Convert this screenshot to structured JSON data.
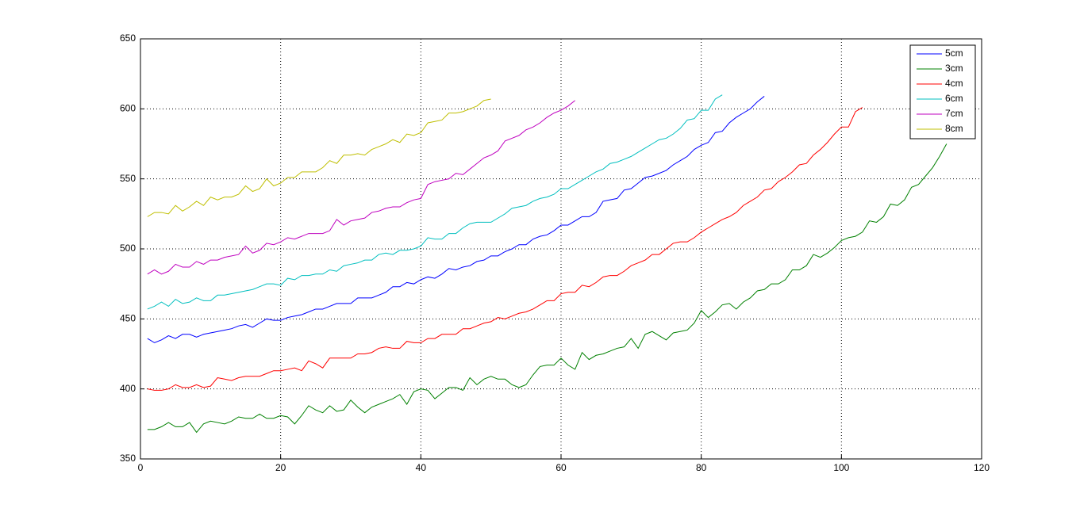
{
  "chart_data": {
    "type": "line",
    "xlim": [
      0,
      120
    ],
    "xticks": [
      0,
      20,
      40,
      60,
      80,
      100,
      120
    ],
    "ylim": [
      350,
      650
    ],
    "yticks": [
      350,
      400,
      450,
      500,
      550,
      600,
      650
    ],
    "grid": true,
    "legend": "upper right",
    "series": [
      {
        "name": "5cm",
        "color": "#0000ff",
        "x": [
          1,
          2,
          3,
          4,
          5,
          6,
          7,
          8,
          9,
          10,
          11,
          12,
          13,
          14,
          15,
          16,
          17,
          18,
          19,
          20,
          21,
          22,
          23,
          24,
          25,
          26,
          27,
          28,
          29,
          30,
          31,
          32,
          33,
          34,
          35,
          36,
          37,
          38,
          39,
          40,
          41,
          42,
          43,
          44,
          45,
          46,
          47,
          48,
          49,
          50,
          51,
          52,
          53,
          54,
          55,
          56,
          57,
          58,
          59,
          60,
          61,
          62,
          63,
          64,
          65,
          66,
          67,
          68,
          69,
          70,
          71,
          72,
          73,
          74,
          75,
          76,
          77,
          78,
          79,
          80,
          81,
          82,
          83,
          84,
          85,
          86,
          87,
          88,
          89
        ],
        "values": [
          436,
          433,
          435,
          438,
          436,
          439,
          439,
          437,
          439,
          440,
          441,
          442,
          443,
          445,
          446,
          444,
          447,
          450,
          449,
          449,
          451,
          452,
          453,
          455,
          457,
          457,
          459,
          461,
          461,
          461,
          465,
          465,
          465,
          467,
          469,
          473,
          473,
          476,
          475,
          478,
          480,
          479,
          482,
          486,
          485,
          487,
          488,
          491,
          492,
          495,
          495,
          498,
          500,
          503,
          503,
          507,
          509,
          510,
          513,
          517,
          517,
          520,
          523,
          523,
          526,
          534,
          535,
          536,
          542,
          543,
          547,
          551,
          552,
          554,
          556,
          560,
          563,
          566,
          571,
          574,
          576,
          583,
          584,
          590,
          594,
          597,
          600,
          605,
          609
        ]
      },
      {
        "name": "3cm",
        "color": "#008000",
        "x": [
          1,
          2,
          3,
          4,
          5,
          6,
          7,
          8,
          9,
          10,
          11,
          12,
          13,
          14,
          15,
          16,
          17,
          18,
          19,
          20,
          21,
          22,
          23,
          24,
          25,
          26,
          27,
          28,
          29,
          30,
          31,
          32,
          33,
          34,
          35,
          36,
          37,
          38,
          39,
          40,
          41,
          42,
          43,
          44,
          45,
          46,
          47,
          48,
          49,
          50,
          51,
          52,
          53,
          54,
          55,
          56,
          57,
          58,
          59,
          60,
          61,
          62,
          63,
          64,
          65,
          66,
          67,
          68,
          69,
          70,
          71,
          72,
          73,
          74,
          75,
          76,
          77,
          78,
          79,
          80,
          81,
          82,
          83,
          84,
          85,
          86,
          87,
          88,
          89,
          90,
          91,
          92,
          93,
          94,
          95,
          96,
          97,
          98,
          99,
          100,
          101,
          102,
          103,
          104,
          105,
          106,
          107,
          108,
          109,
          110,
          111,
          112,
          113,
          114,
          115
        ],
        "values": [
          371,
          371,
          373,
          376,
          373,
          373,
          376,
          369,
          375,
          377,
          376,
          375,
          377,
          380,
          379,
          379,
          382,
          379,
          379,
          381,
          380,
          375,
          381,
          388,
          385,
          383,
          388,
          384,
          385,
          392,
          387,
          383,
          387,
          389,
          391,
          393,
          396,
          389,
          398,
          400,
          399,
          393,
          397,
          401,
          401,
          399,
          408,
          403,
          407,
          409,
          407,
          407,
          403,
          401,
          403,
          410,
          416,
          417,
          417,
          422,
          417,
          414,
          426,
          421,
          424,
          425,
          427,
          429,
          430,
          436,
          429,
          439,
          441,
          438,
          435,
          440,
          441,
          442,
          447,
          456,
          451,
          455,
          460,
          461,
          457,
          462,
          465,
          470,
          471,
          475,
          475,
          478,
          485,
          485,
          488,
          496,
          494,
          497,
          501,
          506,
          508,
          509,
          512,
          520,
          519,
          523,
          532,
          531,
          535,
          544,
          546,
          552,
          558,
          566,
          575
        ]
      },
      {
        "name": "4cm",
        "color": "#ff0000",
        "x": [
          1,
          2,
          3,
          4,
          5,
          6,
          7,
          8,
          9,
          10,
          11,
          12,
          13,
          14,
          15,
          16,
          17,
          18,
          19,
          20,
          21,
          22,
          23,
          24,
          25,
          26,
          27,
          28,
          29,
          30,
          31,
          32,
          33,
          34,
          35,
          36,
          37,
          38,
          39,
          40,
          41,
          42,
          43,
          44,
          45,
          46,
          47,
          48,
          49,
          50,
          51,
          52,
          53,
          54,
          55,
          56,
          57,
          58,
          59,
          60,
          61,
          62,
          63,
          64,
          65,
          66,
          67,
          68,
          69,
          70,
          71,
          72,
          73,
          74,
          75,
          76,
          77,
          78,
          79,
          80,
          81,
          82,
          83,
          84,
          85,
          86,
          87,
          88,
          89,
          90,
          91,
          92,
          93,
          94,
          95,
          96,
          97,
          98,
          99,
          100,
          101,
          102,
          103
        ],
        "values": [
          400,
          399,
          399,
          400,
          403,
          401,
          401,
          403,
          401,
          402,
          408,
          407,
          406,
          408,
          409,
          409,
          409,
          411,
          413,
          413,
          414,
          415,
          413,
          420,
          418,
          415,
          422,
          422,
          422,
          422,
          425,
          425,
          426,
          429,
          430,
          429,
          429,
          434,
          433,
          433,
          436,
          436,
          439,
          439,
          439,
          443,
          443,
          445,
          447,
          448,
          451,
          450,
          452,
          454,
          455,
          457,
          460,
          463,
          463,
          468,
          469,
          469,
          474,
          473,
          476,
          480,
          481,
          481,
          484,
          488,
          490,
          492,
          496,
          496,
          500,
          504,
          505,
          505,
          508,
          512,
          515,
          518,
          521,
          523,
          526,
          531,
          534,
          537,
          542,
          543,
          548,
          551,
          555,
          560,
          561,
          567,
          571,
          576,
          582,
          587,
          587,
          598,
          601
        ]
      },
      {
        "name": "6cm",
        "color": "#00bfbf",
        "x": [
          1,
          2,
          3,
          4,
          5,
          6,
          7,
          8,
          9,
          10,
          11,
          12,
          13,
          14,
          15,
          16,
          17,
          18,
          19,
          20,
          21,
          22,
          23,
          24,
          25,
          26,
          27,
          28,
          29,
          30,
          31,
          32,
          33,
          34,
          35,
          36,
          37,
          38,
          39,
          40,
          41,
          42,
          43,
          44,
          45,
          46,
          47,
          48,
          49,
          50,
          51,
          52,
          53,
          54,
          55,
          56,
          57,
          58,
          59,
          60,
          61,
          62,
          63,
          64,
          65,
          66,
          67,
          68,
          69,
          70,
          71,
          72,
          73,
          74,
          75,
          76,
          77,
          78,
          79,
          80,
          81,
          82,
          83
        ],
        "values": [
          457,
          459,
          462,
          459,
          464,
          461,
          462,
          465,
          463,
          463,
          467,
          467,
          468,
          469,
          470,
          471,
          473,
          475,
          475,
          474,
          479,
          478,
          481,
          481,
          482,
          482,
          485,
          484,
          488,
          489,
          490,
          492,
          492,
          496,
          497,
          496,
          499,
          499,
          500,
          502,
          508,
          507,
          507,
          511,
          511,
          515,
          518,
          519,
          519,
          519,
          522,
          525,
          529,
          530,
          531,
          534,
          536,
          537,
          539,
          543,
          543,
          546,
          549,
          552,
          555,
          557,
          561,
          562,
          564,
          566,
          569,
          572,
          575,
          578,
          579,
          582,
          586,
          592,
          593,
          599,
          599,
          607,
          610
        ]
      },
      {
        "name": "7cm",
        "color": "#bf00bf",
        "x": [
          1,
          2,
          3,
          4,
          5,
          6,
          7,
          8,
          9,
          10,
          11,
          12,
          13,
          14,
          15,
          16,
          17,
          18,
          19,
          20,
          21,
          22,
          23,
          24,
          25,
          26,
          27,
          28,
          29,
          30,
          31,
          32,
          33,
          34,
          35,
          36,
          37,
          38,
          39,
          40,
          41,
          42,
          43,
          44,
          45,
          46,
          47,
          48,
          49,
          50,
          51,
          52,
          53,
          54,
          55,
          56,
          57,
          58,
          59,
          60,
          61,
          62
        ],
        "values": [
          482,
          485,
          482,
          484,
          489,
          487,
          487,
          491,
          489,
          492,
          492,
          494,
          495,
          496,
          502,
          497,
          499,
          504,
          503,
          505,
          508,
          507,
          509,
          511,
          511,
          511,
          513,
          521,
          517,
          520,
          521,
          522,
          526,
          527,
          529,
          530,
          530,
          533,
          535,
          536,
          546,
          548,
          549,
          550,
          554,
          553,
          557,
          561,
          565,
          567,
          570,
          577,
          579,
          581,
          585,
          587,
          590,
          594,
          597,
          599,
          602,
          606
        ]
      },
      {
        "name": "8cm",
        "color": "#bfbf00",
        "x": [
          1,
          2,
          3,
          4,
          5,
          6,
          7,
          8,
          9,
          10,
          11,
          12,
          13,
          14,
          15,
          16,
          17,
          18,
          19,
          20,
          21,
          22,
          23,
          24,
          25,
          26,
          27,
          28,
          29,
          30,
          31,
          32,
          33,
          34,
          35,
          36,
          37,
          38,
          39,
          40,
          41,
          42,
          43,
          44,
          45,
          46,
          47,
          48,
          49,
          50
        ],
        "values": [
          523,
          526,
          526,
          525,
          531,
          527,
          530,
          534,
          531,
          537,
          535,
          537,
          537,
          539,
          545,
          541,
          543,
          550,
          545,
          547,
          551,
          551,
          555,
          555,
          555,
          558,
          563,
          561,
          567,
          567,
          568,
          567,
          571,
          573,
          575,
          578,
          576,
          582,
          581,
          583,
          590,
          591,
          592,
          597,
          597,
          598,
          600,
          602,
          606,
          607
        ]
      }
    ]
  }
}
